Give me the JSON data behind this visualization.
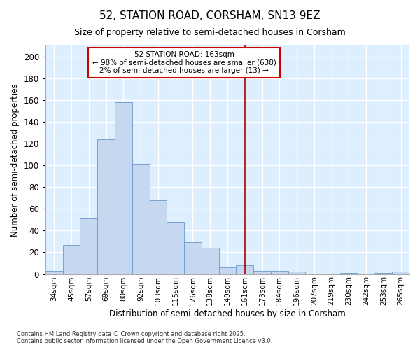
{
  "title": "52, STATION ROAD, CORSHAM, SN13 9EZ",
  "subtitle": "Size of property relative to semi-detached houses in Corsham",
  "xlabel": "Distribution of semi-detached houses by size in Corsham",
  "ylabel": "Number of semi-detached properties",
  "bar_color": "#c5d8f0",
  "bar_edge_color": "#6699cc",
  "background_color": "#ddeeff",
  "grid_color": "#ffffff",
  "categories": [
    "34sqm",
    "45sqm",
    "57sqm",
    "69sqm",
    "80sqm",
    "92sqm",
    "103sqm",
    "115sqm",
    "126sqm",
    "138sqm",
    "149sqm",
    "161sqm",
    "173sqm",
    "184sqm",
    "196sqm",
    "207sqm",
    "219sqm",
    "230sqm",
    "242sqm",
    "253sqm",
    "265sqm"
  ],
  "bar_values": [
    3,
    27,
    51,
    124,
    158,
    101,
    68,
    48,
    29,
    24,
    6,
    8,
    3,
    3,
    2,
    0,
    0,
    1,
    0,
    1,
    2
  ],
  "ylim": [
    0,
    210
  ],
  "yticks": [
    0,
    20,
    40,
    60,
    80,
    100,
    120,
    140,
    160,
    180,
    200
  ],
  "property_label": "52 STATION ROAD: 163sqm",
  "annotation_line1": "← 98% of semi-detached houses are smaller (638)",
  "annotation_line2": "2% of semi-detached houses are larger (13) →",
  "annotation_box_edgecolor": "#cc0000",
  "vline_color": "#aa0000",
  "vline_x_index": 11,
  "footnote1": "Contains HM Land Registry data © Crown copyright and database right 2025.",
  "footnote2": "Contains public sector information licensed under the Open Government Licence v3.0.",
  "fig_width": 6.0,
  "fig_height": 5.0,
  "fig_dpi": 100
}
